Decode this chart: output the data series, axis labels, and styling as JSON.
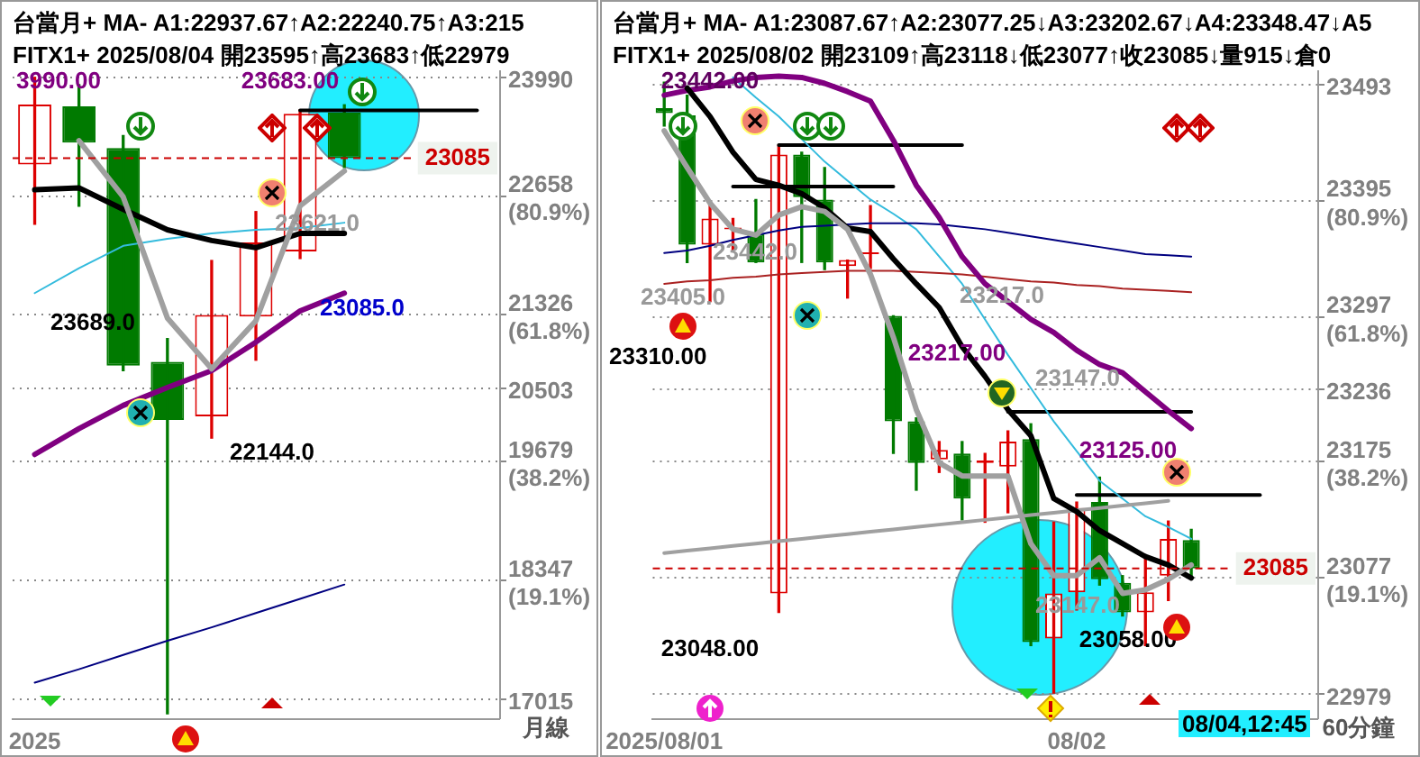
{
  "chart_data": [
    {
      "type": "candlestick",
      "title": "台當月+ MA- A1:22937.67↑A2:22240.75↑A3:215",
      "subtitle": "FITX1+ 2025/08/04 開23595↑高23683↑低22979",
      "categories": [
        "2025",
        null,
        null,
        null,
        null,
        null,
        null,
        null,
        null,
        null,
        null
      ],
      "ohlc": [
        [
          23014,
          23990,
          22342,
          23685
        ],
        [
          23665,
          23909,
          22546,
          23258
        ],
        [
          23197,
          23339,
          20700,
          20757
        ],
        [
          20798,
          21061,
          16850,
          20147
        ],
        [
          20188,
          21936,
          19943,
          21326
        ],
        [
          21306,
          22485,
          20817,
          22139
        ],
        [
          22037,
          23624,
          21958,
          23583
        ],
        [
          23595,
          23683,
          22979,
          23085
        ],
        null,
        null,
        null
      ],
      "colors": [
        "#dd0000",
        "#007a00",
        "#007a00",
        "#007a00",
        "#dd0000",
        "#dd0000",
        "#dd0000",
        "#007a00",
        null,
        null,
        null
      ],
      "series": [
        {
          "type": "line",
          "color": "#a0a0a0",
          "values": [
            null,
            23280,
            22650,
            21290,
            20720,
            21260,
            22550,
            22940,
            null,
            null,
            null
          ]
        },
        {
          "type": "line",
          "color": "#000000",
          "values": [
            22730,
            22750,
            22510,
            22280,
            22160,
            22080,
            22240,
            22240,
            null,
            null,
            null
          ]
        },
        {
          "type": "line",
          "color": "#800080",
          "values": [
            19760,
            20050,
            20310,
            20510,
            20700,
            21020,
            21370,
            21570,
            null,
            null,
            null
          ]
        },
        {
          "type": "line",
          "color": "#33bbdd",
          "values": [
            21570,
            21850,
            22100,
            22180,
            22240,
            22280,
            22300,
            22360,
            null,
            null,
            null
          ]
        },
        {
          "type": "line",
          "color": "#000080",
          "values": [
            17200,
            17350,
            17510,
            17670,
            17820,
            17980,
            18140,
            18300,
            null,
            null,
            null
          ]
        },
        {
          "type": "line",
          "color": "#000000",
          "values": [
            null,
            null,
            null,
            null,
            null,
            null,
            23620,
            23620,
            23620,
            23620,
            23620
          ]
        }
      ],
      "ylim": [
        16790,
        24070
      ],
      "yticks": [
        23990,
        {
          "value": 22658,
          "label": "22658\n(80.9%)"
        },
        {
          "value": 21326,
          "label": "21326\n(61.8%)"
        },
        20503,
        {
          "value": 19679,
          "label": "19679\n(38.2%)"
        },
        {
          "value": 18347,
          "label": "18347\n(19.1%)"
        },
        17015
      ],
      "grid": "y",
      "ref_lines": [
        {
          "axis": "y",
          "value": 23085,
          "label": "23085",
          "color": "#cc0000",
          "line_style": "dashed"
        }
      ],
      "annotations": [
        "3990.00",
        "23683.00",
        "23621.0",
        "23689.0",
        "23085.0",
        "22144.0",
        "月線"
      ]
    },
    {
      "type": "candlestick",
      "title": "台當月+ MA- A1:23087.67↑A2:23077.25↓A3:23202.67↓A4:23348.47↓A5",
      "subtitle": "FITX1+ 2025/08/02 開23109↑高23118↓低23077↑收23085↓量915↓倉0",
      "categories": [
        "2025/08/01",
        null,
        null,
        null,
        null,
        null,
        null,
        null,
        null,
        null,
        null,
        null,
        null,
        null,
        null,
        null,
        null,
        null,
        "08/02",
        null,
        null,
        null,
        null,
        null,
        null,
        null,
        null,
        null,
        null
      ],
      "ohlc": [
        [
          23473,
          23495,
          23458,
          23469
        ],
        [
          23467,
          23484,
          23343,
          23358
        ],
        [
          23358,
          23393,
          23310,
          23380
        ],
        [
          23371,
          23380,
          23352,
          23372
        ],
        [
          23367,
          23396,
          23343,
          23343
        ],
        [
          23064,
          23442,
          23048,
          23434
        ],
        [
          23434,
          23436,
          23343,
          23398
        ],
        [
          23396,
          23423,
          23337,
          23343
        ],
        [
          23340,
          23345,
          23313,
          23345
        ],
        [
          23350,
          23391,
          23338,
          23351
        ],
        [
          23298,
          23298,
          23182,
          23209
        ],
        [
          23209,
          23212,
          23151,
          23174
        ],
        [
          23177,
          23192,
          23166,
          23185
        ],
        [
          23182,
          23192,
          23126,
          23144
        ],
        [
          23174,
          23182,
          23124,
          23176
        ],
        [
          23171,
          23201,
          23132,
          23192
        ],
        [
          23194,
          23207,
          23020,
          23023
        ],
        [
          23026,
          23124,
          22980,
          23064
        ],
        [
          23065,
          23141,
          23050,
          23136
        ],
        [
          23141,
          23162,
          23071,
          23076
        ],
        [
          23073,
          23079,
          23045,
          23048
        ],
        [
          23048,
          23095,
          23020,
          23065
        ],
        [
          23079,
          23125,
          23058,
          23110
        ],
        [
          23109,
          23118,
          23077,
          23085
        ],
        null,
        null,
        null,
        null,
        null
      ],
      "colors": [
        "#007a00",
        "#007a00",
        "#dd0000",
        "#dd0000",
        "#007a00",
        "#dd0000",
        "#007a00",
        "#007a00",
        "#dd0000",
        "#dd0000",
        "#007a00",
        "#007a00",
        "#dd0000",
        "#007a00",
        "#dd0000",
        "#dd0000",
        "#007a00",
        "#dd0000",
        "#dd0000",
        "#007a00",
        "#007a00",
        "#dd0000",
        "#dd0000",
        "#007a00",
        null,
        null,
        null,
        null,
        null
      ],
      "series": [
        {
          "type": "line",
          "color": "#a0a0a0",
          "values": [
            23454,
            23423,
            23393,
            23371,
            23366,
            23383,
            23390,
            23386,
            23371,
            23333,
            23280,
            23219,
            23174,
            23163,
            23163,
            23163,
            23106,
            23079,
            23079,
            23094,
            23064,
            23067,
            23076,
            23088,
            null,
            null,
            null,
            null,
            null
          ]
        },
        {
          "type": "line",
          "color": "#000000",
          "values": [
            null,
            23490,
            23466,
            23436,
            23413,
            23408,
            23401,
            23389,
            23372,
            23369,
            23346,
            23325,
            23305,
            23272,
            23247,
            23219,
            23197,
            23144,
            23133,
            23117,
            23106,
            23095,
            23088,
            23077,
            null,
            null,
            null,
            null,
            null
          ]
        },
        {
          "type": "line",
          "color": "#800080",
          "values": [
            23484,
            23488,
            23491,
            23496,
            23499,
            23500,
            23499,
            23494,
            23487,
            23479,
            23446,
            23408,
            23381,
            23348,
            23325,
            23310,
            23295,
            23284,
            23269,
            23257,
            23250,
            23234,
            23218,
            23203,
            null,
            null,
            null,
            null,
            null
          ]
        },
        {
          "type": "line",
          "color": "#000080",
          "values": [
            23351,
            23353,
            23357,
            23362,
            23366,
            23370,
            23373,
            23374,
            23375,
            23376,
            23376,
            23376,
            23375,
            23373,
            23371,
            23368,
            23365,
            23362,
            23359,
            23356,
            23353,
            23350,
            23349,
            23348,
            null,
            null,
            null,
            null,
            null
          ]
        },
        {
          "type": "line",
          "color": "#aa2222",
          "values": [
            23325,
            23327,
            23328,
            23330,
            23331,
            23333,
            23334,
            23335,
            23336,
            23336,
            23336,
            23335,
            23334,
            23333,
            23331,
            23329,
            23327,
            23326,
            23324,
            23323,
            23321,
            23320,
            23319,
            23318,
            null,
            null,
            null,
            null,
            null
          ]
        },
        {
          "type": "line",
          "color": "#a0a0a0",
          "values": [
            23098,
            23100,
            23102,
            23104,
            23106,
            23108,
            23110,
            23112,
            23114,
            23116,
            23118,
            23120,
            23122,
            23124,
            23126,
            23128,
            23130,
            23132,
            23134,
            23136,
            23138,
            23140,
            23142,
            null,
            null,
            null,
            null,
            null,
            null
          ]
        },
        {
          "type": "line",
          "color": "#33bbdd",
          "values": [
            null,
            null,
            null,
            23499,
            23482,
            23466,
            23447,
            23428,
            23412,
            23396,
            23384,
            23371,
            23348,
            23325,
            23295,
            23265,
            23237,
            23209,
            23184,
            23159,
            23144,
            23129,
            23120,
            23110,
            null,
            null,
            null,
            null,
            null
          ]
        },
        {
          "type": "line",
          "color": "#000000",
          "values": [
            null,
            null,
            null,
            null,
            null,
            23442,
            23442,
            23442,
            23442,
            23442,
            23442,
            23442,
            23442,
            23442,
            null,
            null,
            null,
            null,
            null,
            null,
            null,
            null,
            null,
            null,
            null,
            null,
            null,
            null,
            null
          ]
        },
        {
          "type": "line",
          "color": "#000000",
          "values": [
            null,
            null,
            null,
            23407,
            23407,
            23407,
            23407,
            23407,
            23407,
            23407,
            23407,
            null,
            null,
            null,
            null,
            null,
            null,
            null,
            null,
            null,
            null,
            null,
            null,
            null,
            null,
            null,
            null,
            null,
            null
          ]
        },
        {
          "type": "line",
          "color": "#000000",
          "values": [
            null,
            null,
            null,
            null,
            null,
            null,
            null,
            null,
            null,
            null,
            null,
            null,
            null,
            null,
            null,
            23217,
            23217,
            23217,
            23217,
            23217,
            23217,
            23217,
            23217,
            23217,
            null,
            null,
            null,
            null,
            null
          ]
        },
        {
          "type": "line",
          "color": "#000000",
          "values": [
            null,
            null,
            null,
            null,
            null,
            null,
            null,
            null,
            null,
            null,
            null,
            null,
            null,
            null,
            null,
            null,
            null,
            null,
            23147,
            23147,
            23147,
            23147,
            23147,
            23147,
            23147,
            23147,
            23147,
            null,
            null
          ]
        }
      ],
      "ylim": [
        22958,
        23505
      ],
      "yticks": [
        23493,
        {
          "value": 23395,
          "label": "23395\n(80.9%)"
        },
        {
          "value": 23297,
          "label": "23297\n(61.8%)"
        },
        23236,
        {
          "value": 23175,
          "label": "23175\n(38.2%)"
        },
        {
          "value": 23077,
          "label": "23077\n(19.1%)"
        },
        22979
      ],
      "grid": "y",
      "ref_lines": [
        {
          "axis": "y",
          "value": 23085,
          "label": "23085",
          "color": "#cc0000",
          "line_style": "dashed"
        }
      ],
      "annotations": [
        "23442.00",
        "23405.0",
        "23442.0",
        "23310.00",
        "23217.0",
        "23217.00",
        "23147.0",
        "23125.00",
        "23147.0",
        "23058.00",
        "23048.00",
        "08/04,12:45",
        "60分鐘"
      ]
    }
  ]
}
